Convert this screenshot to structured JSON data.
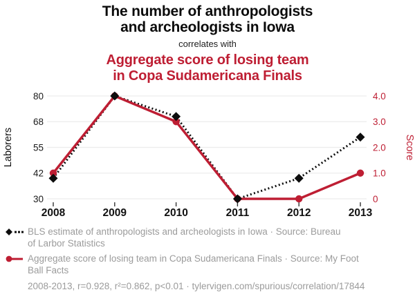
{
  "title": {
    "line1": "The number of anthropologists",
    "line2": "and archeologists in Iowa",
    "connector": "correlates with",
    "red_line1": "Aggregate score of losing team",
    "red_line2": "in Copa Sudamericana Finals"
  },
  "colors": {
    "accent_red": "#be1e33",
    "series_black": "#0d0d0d",
    "gridline": "#ececec",
    "legend_gray": "#9b9b9b"
  },
  "chart_data": {
    "type": "line",
    "categories": [
      "2008",
      "2009",
      "2010",
      "2011",
      "2012",
      "2013"
    ],
    "series": [
      {
        "name": "BLS estimate of anthropologists and archeologists in Iowa",
        "axis": "left",
        "style": "dotted-diamond",
        "color": "#0d0d0d",
        "values": [
          40,
          80,
          70,
          30,
          40,
          60
        ]
      },
      {
        "name": "Aggregate score of losing team in Copa Sudamericana Finals",
        "axis": "right",
        "style": "solid-circle",
        "color": "#be1e33",
        "values": [
          1.0,
          4.0,
          3.0,
          0,
          0,
          1.0
        ]
      }
    ],
    "left_axis": {
      "label": "Laborers",
      "ticks": [
        80,
        68,
        55,
        42,
        30
      ],
      "min": 30,
      "max": 80
    },
    "right_axis": {
      "label": "Score",
      "ticks": [
        "4.0",
        "3.0",
        "2.0",
        "1.0",
        "0"
      ],
      "tick_values": [
        4,
        3,
        2,
        1,
        0
      ],
      "min": 0,
      "max": 4
    },
    "grid": true,
    "legend_position": "bottom"
  },
  "legend": {
    "items": [
      {
        "marker": "black-diamond-dotted-icon",
        "line1": "BLS estimate of anthropologists and archeologists in Iowa · Source: Bureau",
        "line2": "of Larbor Statistics"
      },
      {
        "marker": "red-circle-solid-icon",
        "line1": "Aggregate score of losing team in Copa Sudamericana Finals · Source: My Foot",
        "line2": "Ball Facts"
      }
    ],
    "footer": "2008-2013, r=0.928, r²=0.862, p<0.01 · tylervigen.com/spurious/correlation/17844"
  }
}
